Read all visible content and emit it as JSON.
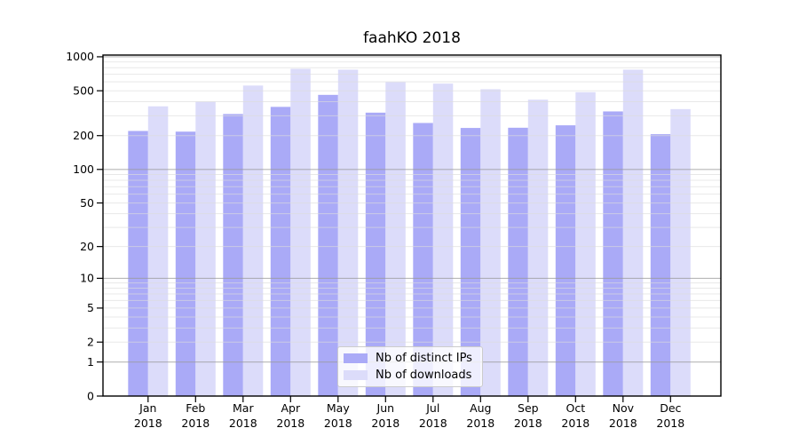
{
  "chart_data": {
    "type": "bar",
    "scale": "log1p",
    "title": "faahKO 2018",
    "categories": [
      "Jan",
      "Feb",
      "Mar",
      "Apr",
      "May",
      "Jun",
      "Jul",
      "Aug",
      "Sep",
      "Oct",
      "Nov",
      "Dec"
    ],
    "category_year": "2018",
    "series": [
      {
        "name": "Nb of distinct IPs",
        "color": "#aaaaf7",
        "values": [
          220,
          217,
          311,
          360,
          460,
          320,
          259,
          234,
          235,
          247,
          328,
          206
        ]
      },
      {
        "name": "Nb of downloads",
        "color": "#dcdcfa",
        "values": [
          364,
          400,
          556,
          783,
          769,
          597,
          579,
          516,
          417,
          486,
          769,
          344
        ]
      }
    ],
    "yticks": [
      0,
      1,
      2,
      5,
      10,
      20,
      50,
      100,
      200,
      500,
      1000
    ],
    "ylim": [
      0,
      1040
    ],
    "grid": "both",
    "legend_position": "lower center"
  },
  "colors": {
    "background": "#ffffff",
    "axis": "#000000",
    "text": "#000000",
    "grid_major": "#999999",
    "grid_minor": "#dcdcdc",
    "legend_background": "rgba(255,255,255,0.8)",
    "legend_border": "#cccccc"
  }
}
